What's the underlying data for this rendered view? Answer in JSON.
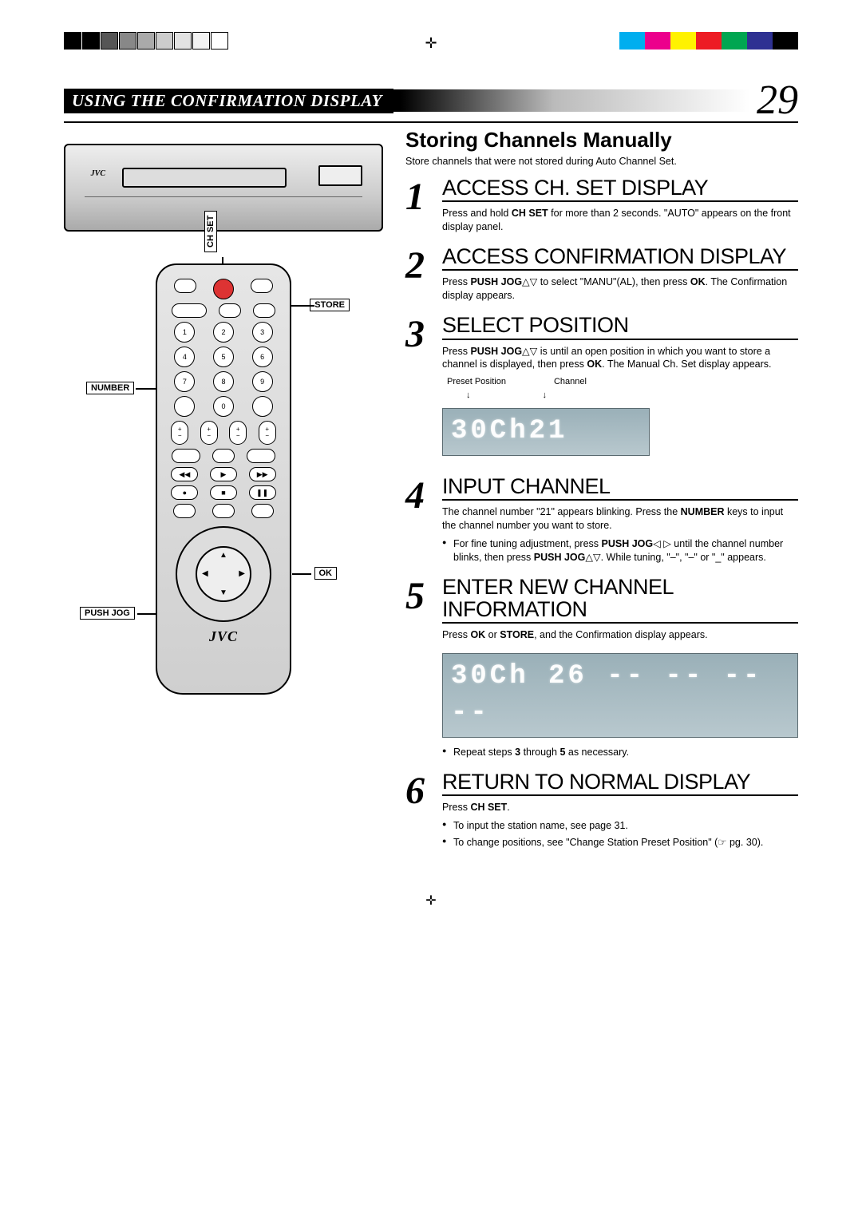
{
  "print": {
    "reg_left_shades": [
      "#000000",
      "#000000",
      "#555555",
      "#888888",
      "#aaaaaa",
      "#cccccc",
      "#e2e2e2",
      "#f2f2f2",
      "#ffffff"
    ],
    "color_bars": [
      "#00aeef",
      "#ec008c",
      "#fff200",
      "#ed1c24",
      "#00a651",
      "#2e3192",
      "#000000"
    ]
  },
  "header": {
    "title": "USING THE CONFIRMATION DISPLAY",
    "page_number": "29"
  },
  "section": {
    "title": "Storing Channels Manually",
    "intro": "Store channels that were not stored during Auto Channel Set."
  },
  "diagram": {
    "vcr_logo": "JVC",
    "remote_logo": "JVC",
    "callouts": {
      "ch_set": "CH SET",
      "store": "STORE",
      "number": "NUMBER",
      "ok": "OK",
      "push_jog": "PUSH JOG"
    },
    "keypad": [
      "1",
      "2",
      "3",
      "4",
      "5",
      "6",
      "7",
      "8",
      "9",
      "0"
    ]
  },
  "steps": [
    {
      "n": "1",
      "title": "ACCESS CH. SET DISPLAY",
      "body_html": "Press and hold <b>CH SET</b> for more than 2 seconds. \"AUTO\" appears on the front display panel."
    },
    {
      "n": "2",
      "title": "ACCESS CONFIRMATION DISPLAY",
      "body_html": "Press <b>PUSH JOG</b>△▽ to select \"MANU\"(AL), then press <b>OK</b>. The Confirmation display appears."
    },
    {
      "n": "3",
      "title": "SELECT POSITION",
      "body_html": "Press <b>PUSH JOG</b>△▽ is until an open position in which you want to store a channel is displayed, then press <b>OK</b>. The Manual Ch. Set display appears.",
      "lcd_labels": {
        "left": "Preset Position",
        "right": "Channel"
      },
      "lcd_text": "30Ch21"
    },
    {
      "n": "4",
      "title": "INPUT CHANNEL",
      "body_html": "The channel number \"21\" appears blinking. Press the <b>NUMBER</b> keys to input the channel number you want to store.",
      "bullets": [
        "For fine tuning adjustment, press <b>PUSH JOG</b>◁ ▷ until the channel number blinks, then press <b>PUSH JOG</b>△▽. While tuning, \"–\", \"–\" or \"_\" appears."
      ]
    },
    {
      "n": "5",
      "title": "ENTER NEW CHANNEL INFORMATION",
      "body_html": "Press <b>OK</b> or <b>STORE</b>, and the Confirmation display appears.",
      "lcd_text": "30Ch 26 -- -- -- --",
      "after_bullets": [
        "Repeat steps <b>3</b> through <b>5</b> as necessary."
      ]
    },
    {
      "n": "6",
      "title": "RETURN TO NORMAL DISPLAY",
      "body_html": "Press <b>CH SET</b>.",
      "bullets": [
        "To input the station name, see page 31.",
        "To change positions, see \"Change Station Preset Position\" (☞ pg. 30)."
      ]
    }
  ],
  "colors": {
    "lcd_bg_top": "#9ab0b8",
    "lcd_bg_bottom": "#b8c8ce",
    "lcd_text": "#ffffff"
  }
}
